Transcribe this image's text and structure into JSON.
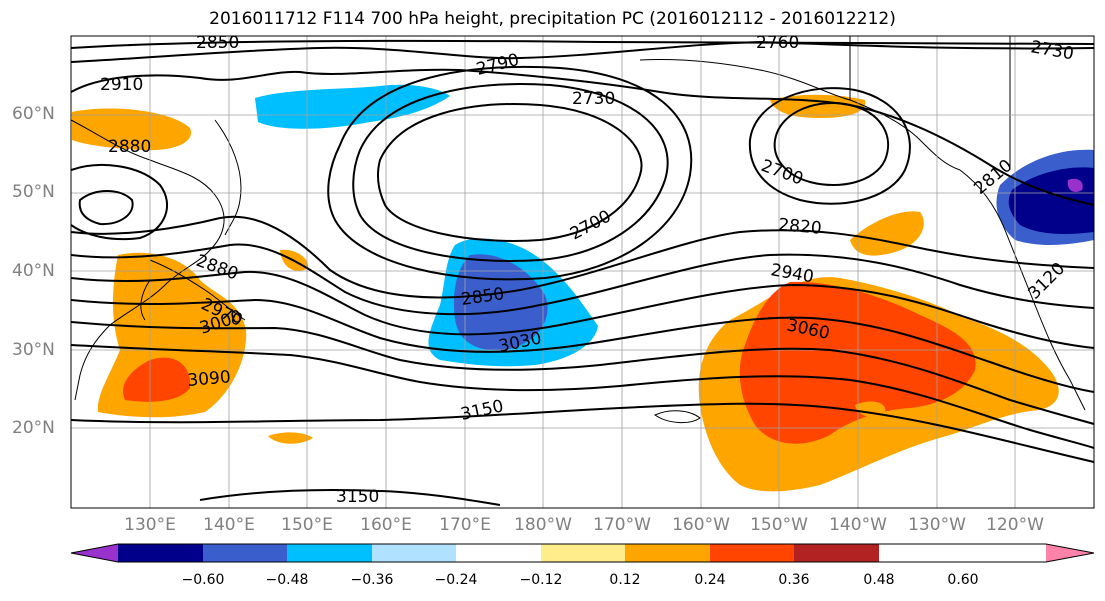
{
  "title": "2016011712 F114 700 hPa height, precipitation PC (2016012112 - 2016012212)",
  "map": {
    "lat_labels": [
      "60°N",
      "50°N",
      "40°N",
      "30°N",
      "20°N"
    ],
    "lon_labels": [
      "130°E",
      "140°E",
      "150°E",
      "160°E",
      "170°E",
      "180°W",
      "170°W",
      "160°W",
      "150°W",
      "140°W",
      "130°W",
      "120°W"
    ],
    "height_contour_labels": [
      "2850",
      "2910",
      "2880",
      "2790",
      "2760",
      "2730",
      "2730",
      "2700",
      "2700",
      "2820",
      "2940",
      "3060",
      "3120",
      "2810",
      "2880",
      "2970",
      "3000",
      "3090",
      "2850",
      "3030",
      "3150",
      "3150"
    ]
  },
  "colorbar": {
    "tick_labels": [
      "−0.60",
      "−0.48",
      "−0.36",
      "−0.24",
      "−0.12",
      "0.12",
      "0.24",
      "0.36",
      "0.48",
      "0.60"
    ],
    "colors": [
      "#9932cc",
      "#00008b",
      "#3a5fcd",
      "#00bfff",
      "#b0e2ff",
      "#ffffff",
      "#ffec8b",
      "#ffa500",
      "#ff4500",
      "#b22222",
      "#ff82ab"
    ]
  }
}
